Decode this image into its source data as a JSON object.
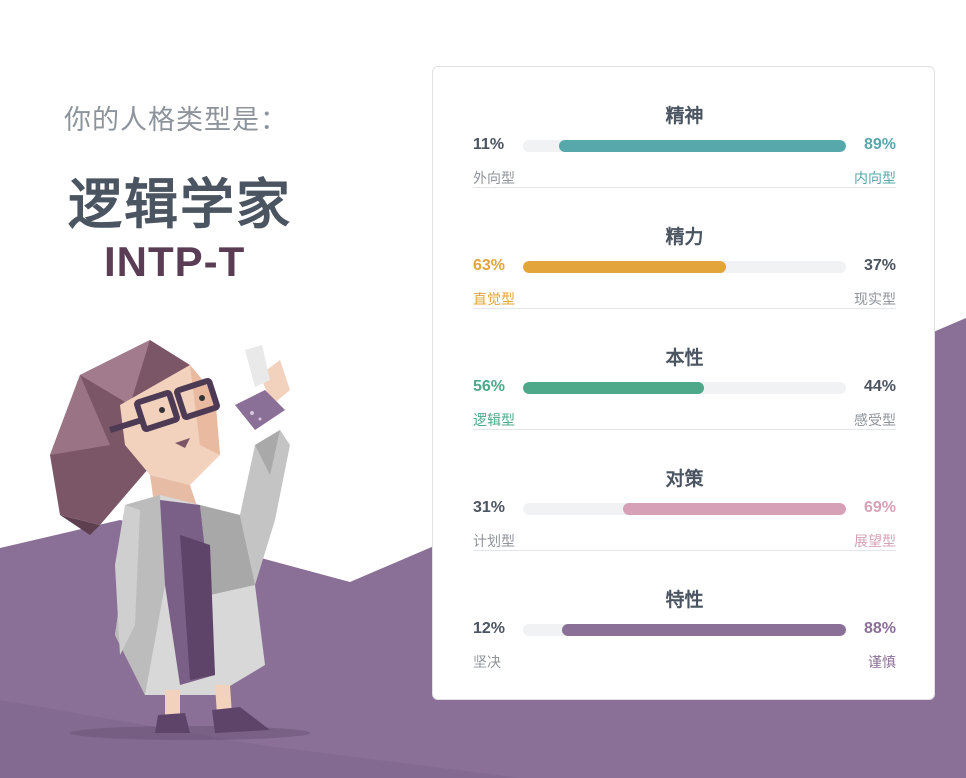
{
  "header": {
    "intro": "你的人格类型是：",
    "type_name": "逻辑学家",
    "type_code": "INTP-T"
  },
  "colors": {
    "background_band": "#8a7097",
    "neutral_text": "#4b5461",
    "muted_text": "#8e949b"
  },
  "traits": [
    {
      "title": "精神",
      "left_percent": "11%",
      "right_percent": "89%",
      "left_label": "外向型",
      "right_label": "内向型",
      "fill_side": "right",
      "fill_fraction": 0.89,
      "color": "#56a8aa"
    },
    {
      "title": "精力",
      "left_percent": "63%",
      "right_percent": "37%",
      "left_label": "直觉型",
      "right_label": "现实型",
      "fill_side": "left",
      "fill_fraction": 0.63,
      "color": "#e3a43c"
    },
    {
      "title": "本性",
      "left_percent": "56%",
      "right_percent": "44%",
      "left_label": "逻辑型",
      "right_label": "感受型",
      "fill_side": "left",
      "fill_fraction": 0.56,
      "color": "#4ea88a"
    },
    {
      "title": "对策",
      "left_percent": "31%",
      "right_percent": "69%",
      "left_label": "计划型",
      "right_label": "展望型",
      "fill_side": "right",
      "fill_fraction": 0.69,
      "color": "#d6a0b6"
    },
    {
      "title": "特性",
      "left_percent": "12%",
      "right_percent": "88%",
      "left_label": "坚决",
      "right_label": "谨慎",
      "fill_side": "right",
      "fill_fraction": 0.88,
      "color": "#8a6f96"
    }
  ]
}
